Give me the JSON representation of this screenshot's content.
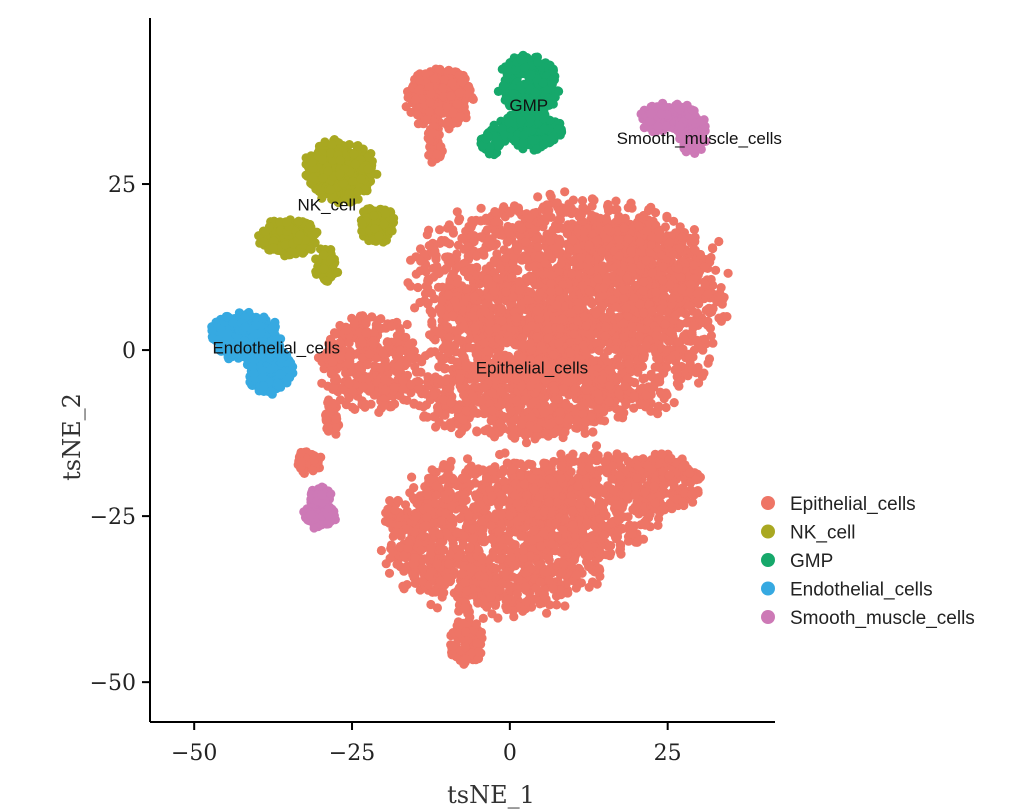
{
  "chart_data": {
    "type": "scatter",
    "title": "",
    "xlabel": "tsNE_1",
    "ylabel": "tsNE_2",
    "xlim": [
      -57,
      42
    ],
    "ylim": [
      -56,
      50
    ],
    "xticks": [
      {
        "value": -50,
        "label": "−50"
      },
      {
        "value": -25,
        "label": "−25"
      },
      {
        "value": 0,
        "label": "0"
      },
      {
        "value": 25,
        "label": "25"
      }
    ],
    "yticks": [
      {
        "value": 25,
        "label": "25"
      },
      {
        "value": 0,
        "label": "0"
      },
      {
        "value": -25,
        "label": "−25"
      },
      {
        "value": -50,
        "label": "−50"
      }
    ],
    "grid": false,
    "legend_position": "right",
    "series": [
      {
        "name": "Epithelial_cells",
        "color": "#EE7566",
        "label_at": [
          3.5,
          -3.5
        ],
        "blobs": [
          {
            "cx": 9,
            "cy": 11,
            "rx": 27,
            "ry": 13,
            "n": 1500
          },
          {
            "cx": 19,
            "cy": 5,
            "rx": 16,
            "ry": 16,
            "n": 900
          },
          {
            "cx": 0,
            "cy": 2,
            "rx": 14,
            "ry": 10,
            "n": 500
          },
          {
            "cx": 2,
            "cy": -7,
            "rx": 19,
            "ry": 7,
            "n": 700
          },
          {
            "cx": -22,
            "cy": -2,
            "rx": 9,
            "ry": 8,
            "n": 350
          },
          {
            "cx": -2,
            "cy": -28,
            "rx": 20,
            "ry": 13,
            "n": 1400
          },
          {
            "cx": 12,
            "cy": -23,
            "rx": 13,
            "ry": 9,
            "n": 500
          },
          {
            "cx": 24,
            "cy": -20,
            "rx": 7,
            "ry": 5,
            "n": 200
          },
          {
            "cx": -7,
            "cy": -44,
            "rx": 3,
            "ry": 4,
            "n": 90
          },
          {
            "cx": -11,
            "cy": 38,
            "rx": 6,
            "ry": 5,
            "n": 300
          },
          {
            "cx": -12,
            "cy": 31,
            "rx": 1.5,
            "ry": 3,
            "n": 40
          },
          {
            "cx": -32,
            "cy": -17,
            "rx": 2.5,
            "ry": 2,
            "n": 50
          },
          {
            "cx": -28,
            "cy": -10,
            "rx": 1.5,
            "ry": 3,
            "n": 40
          }
        ]
      },
      {
        "name": "NK_cell",
        "color": "#A9A821",
        "label_at": [
          -29,
          21
        ],
        "blobs": [
          {
            "cx": -27,
            "cy": 27,
            "rx": 6,
            "ry": 5,
            "n": 400
          },
          {
            "cx": -35,
            "cy": 17,
            "rx": 5,
            "ry": 3,
            "n": 200
          },
          {
            "cx": -21,
            "cy": 19,
            "rx": 3,
            "ry": 3,
            "n": 150
          },
          {
            "cx": -29,
            "cy": 13,
            "rx": 2,
            "ry": 3,
            "n": 70
          }
        ]
      },
      {
        "name": "GMP",
        "color": "#16A86B",
        "label_at": [
          3,
          36
        ],
        "blobs": [
          {
            "cx": 3,
            "cy": 40,
            "rx": 5,
            "ry": 5,
            "n": 300
          },
          {
            "cx": 3,
            "cy": 33,
            "rx": 6,
            "ry": 3,
            "n": 200
          },
          {
            "cx": -3,
            "cy": 31,
            "rx": 2,
            "ry": 2,
            "n": 40
          }
        ]
      },
      {
        "name": "Endothelial_cells",
        "color": "#36A9E1",
        "label_at": [
          -37,
          -0.5
        ],
        "blobs": [
          {
            "cx": -42,
            "cy": 2,
            "rx": 6,
            "ry": 4,
            "n": 350
          },
          {
            "cx": -38,
            "cy": -3,
            "rx": 4,
            "ry": 4,
            "n": 200
          }
        ]
      },
      {
        "name": "Smooth_muscle_cells",
        "color": "#CD79B6",
        "label_at": [
          30,
          31
        ],
        "blobs": [
          {
            "cx": 25,
            "cy": 35,
            "rx": 5,
            "ry": 2.5,
            "n": 150
          },
          {
            "cx": 29,
            "cy": 33,
            "rx": 2.5,
            "ry": 4,
            "n": 100
          },
          {
            "cx": -30,
            "cy": -25,
            "rx": 3,
            "ry": 2,
            "n": 100
          },
          {
            "cx": -30,
            "cy": -22,
            "rx": 2,
            "ry": 1.5,
            "n": 50
          }
        ]
      }
    ]
  }
}
